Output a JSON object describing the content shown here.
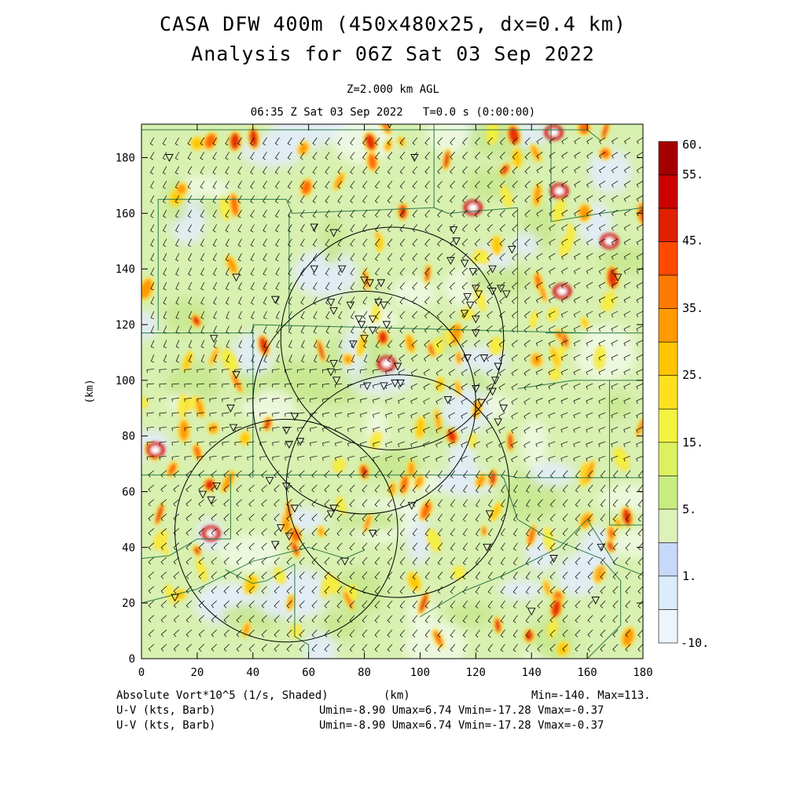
{
  "header": {
    "title_line1": "CASA DFW 400m (450x480x25, dx=0.4 km)",
    "title_line2": "Analysis for 06Z Sat 03 Sep 2022",
    "level": "Z=2.000 km AGL",
    "valid_time": "06:35 Z Sat 03 Sep 2022   T=0.0 s (0:00:00)"
  },
  "footer": {
    "field_shaded": "Absolute Vort*10^5 (1/s, Shaded)",
    "x_unit": "(km)",
    "minmax": "Min=-140. Max=113.",
    "barb_label_1": "U-V (kts, Barb)",
    "barb_stats_1": "Umin=-8.90 Umax=6.74 Vmin=-17.28 Vmax=-0.37",
    "barb_label_2": "U-V (kts, Barb)",
    "barb_stats_2": "Umin=-8.90 Umax=6.74 Vmin=-17.28 Vmax=-0.37"
  },
  "chart_data": {
    "type": "heatmap",
    "xlabel": "",
    "ylabel": "(km)",
    "xlim": [
      0,
      180
    ],
    "ylim": [
      0,
      192
    ],
    "x_ticks": [
      "0",
      "20",
      "40",
      "60",
      "80",
      "100",
      "120",
      "140",
      "160",
      "180"
    ],
    "y_ticks": [
      "0",
      "20",
      "40",
      "60",
      "80",
      "100",
      "120",
      "140",
      "160",
      "180"
    ],
    "colorbar": {
      "labels": [
        "60.",
        "55.",
        "45.",
        "35.",
        "25.",
        "15.",
        "5.",
        "1.",
        "-10."
      ],
      "colors": [
        "#a50000",
        "#cc0000",
        "#e02000",
        "#ff4a00",
        "#ff7a00",
        "#ff9a00",
        "#ffc400",
        "#ffe020",
        "#f2f240",
        "#ddf060",
        "#c8ec80",
        "#dcf2b8",
        "#c8d8f8",
        "#dcecfa",
        "#eaf6fc"
      ]
    },
    "radar_rings_km": [
      {
        "cx": 90,
        "cy": 115,
        "r": 40
      },
      {
        "cx": 80,
        "cy": 92,
        "r": 40
      },
      {
        "cx": 92,
        "cy": 62,
        "r": 40
      },
      {
        "cx": 52,
        "cy": 46,
        "r": 40
      }
    ]
  }
}
